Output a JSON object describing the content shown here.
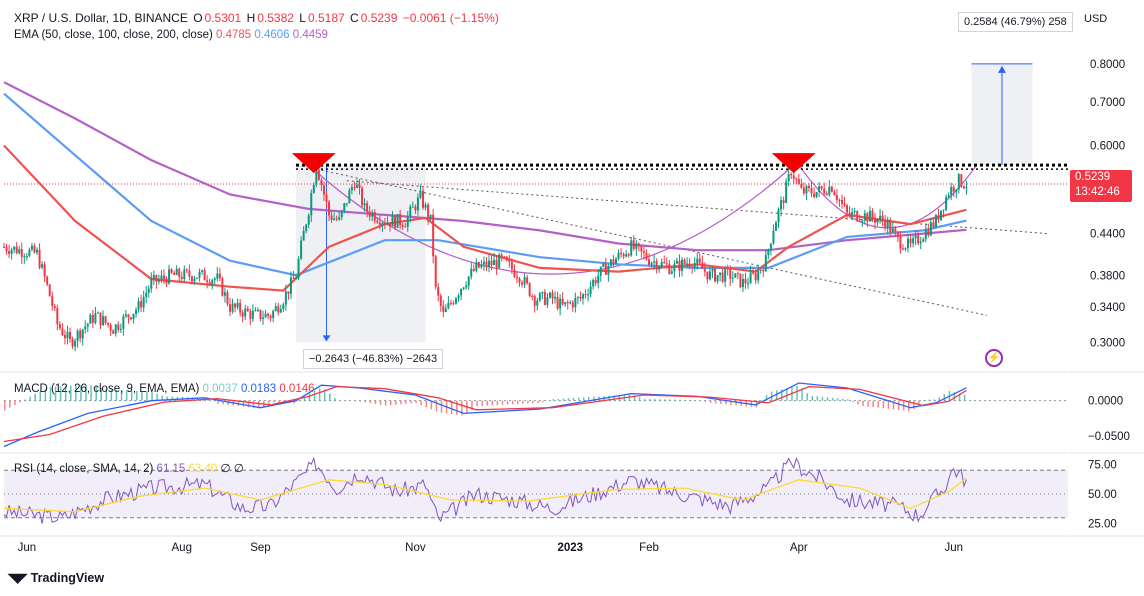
{
  "header": {
    "symbol": "XRP / U.S. Dollar, 1D, BINANCE",
    "o_label": "O",
    "o_value": "0.5301",
    "h_label": "H",
    "h_value": "0.5382",
    "l_label": "L",
    "l_value": "0.5187",
    "c_label": "C",
    "c_value": "0.5239",
    "change": "−0.0061 (−1.15%)"
  },
  "ema_legend": {
    "label": "EMA (50, close, 100, close, 200, close)",
    "ema50": "0.4785",
    "ema100": "0.4606",
    "ema200": "0.4459"
  },
  "macd_legend": {
    "label": "MACD (12, 26, close, 9, EMA, EMA)",
    "hist": "0.0037",
    "macd": "0.0183",
    "signal": "0.0146"
  },
  "rsi_legend": {
    "label": "RSI (14, close, SMA, 14, 2)",
    "rsi": "61.15",
    "sma": "63.40",
    "extra1": "∅",
    "extra2": "∅"
  },
  "price_tag": {
    "value": "0.5239",
    "countdown": "13:42:46"
  },
  "measure_up": "0.2584 (46.79%) 258",
  "measure_down": "−0.2643 (−46.83%) −2643",
  "currency": "USD",
  "brand": "TradingView",
  "colors": {
    "ema50": "#ef5350",
    "ema100": "#5b9cf6",
    "ema200": "#b460c8",
    "up": "#089981",
    "down": "#f23645",
    "macd": "#2962ff",
    "signal": "#f23645",
    "rsi": "#7e57c2",
    "rsi_sma": "#fdd835"
  },
  "chart_data": [
    {
      "type": "candlestick",
      "title": "XRP / U.S. Dollar, 1D, BINANCE",
      "ylabel": "USD",
      "y_ticks": [
        "0.8000",
        "0.7000",
        "0.6000",
        "0.4400",
        "0.3800",
        "0.3400",
        "0.3000"
      ],
      "y_scale": "log",
      "ylim": [
        0.28,
        0.87
      ],
      "x_ticks": [
        "Jun",
        "Aug",
        "Sep",
        "Nov",
        "2023",
        "Feb",
        "Apr",
        "Jun"
      ],
      "x_tick_dates": [
        "2022-06-01",
        "2022-08-01",
        "2022-09-01",
        "2022-11-01",
        "2023-01-01",
        "2023-02-01",
        "2023-04-01",
        "2023-06-01"
      ],
      "x_range": [
        "2022-05-23",
        "2023-07-16"
      ],
      "close_path": [
        [
          "2022-05-23",
          0.42
        ],
        [
          "2022-06-05",
          0.41
        ],
        [
          "2022-06-13",
          0.32
        ],
        [
          "2022-06-18",
          0.3
        ],
        [
          "2022-06-28",
          0.33
        ],
        [
          "2022-07-05",
          0.315
        ],
        [
          "2022-07-15",
          0.34
        ],
        [
          "2022-07-20",
          0.37
        ],
        [
          "2022-07-28",
          0.38
        ],
        [
          "2022-08-08",
          0.38
        ],
        [
          "2022-08-15",
          0.375
        ],
        [
          "2022-08-20",
          0.34
        ],
        [
          "2022-08-30",
          0.33
        ],
        [
          "2022-09-05",
          0.33
        ],
        [
          "2022-09-10",
          0.35
        ],
        [
          "2022-09-15",
          0.38
        ],
        [
          "2022-09-20",
          0.48
        ],
        [
          "2022-09-23",
          0.56
        ],
        [
          "2022-09-28",
          0.47
        ],
        [
          "2022-10-02",
          0.46
        ],
        [
          "2022-10-08",
          0.53
        ],
        [
          "2022-10-12",
          0.48
        ],
        [
          "2022-10-20",
          0.46
        ],
        [
          "2022-10-28",
          0.46
        ],
        [
          "2022-11-03",
          0.5
        ],
        [
          "2022-11-07",
          0.46
        ],
        [
          "2022-11-09",
          0.36
        ],
        [
          "2022-11-12",
          0.33
        ],
        [
          "2022-11-20",
          0.37
        ],
        [
          "2022-11-25",
          0.39
        ],
        [
          "2022-12-05",
          0.4
        ],
        [
          "2022-12-12",
          0.38
        ],
        [
          "2022-12-18",
          0.35
        ],
        [
          "2022-12-25",
          0.35
        ],
        [
          "2022-12-29",
          0.34
        ],
        [
          "2023-01-05",
          0.35
        ],
        [
          "2023-01-12",
          0.38
        ],
        [
          "2023-01-18",
          0.4
        ],
        [
          "2023-01-25",
          0.42
        ],
        [
          "2023-02-02",
          0.4
        ],
        [
          "2023-02-10",
          0.39
        ],
        [
          "2023-02-18",
          0.4
        ],
        [
          "2023-02-25",
          0.38
        ],
        [
          "2023-03-05",
          0.38
        ],
        [
          "2023-03-10",
          0.37
        ],
        [
          "2023-03-15",
          0.38
        ],
        [
          "2023-03-19",
          0.4
        ],
        [
          "2023-03-22",
          0.45
        ],
        [
          "2023-03-26",
          0.5
        ],
        [
          "2023-03-29",
          0.55
        ],
        [
          "2023-04-02",
          0.51
        ],
        [
          "2023-04-08",
          0.51
        ],
        [
          "2023-04-14",
          0.52
        ],
        [
          "2023-04-20",
          0.47
        ],
        [
          "2023-04-26",
          0.47
        ],
        [
          "2023-05-05",
          0.46
        ],
        [
          "2023-05-10",
          0.43
        ],
        [
          "2023-05-15",
          0.42
        ],
        [
          "2023-05-20",
          0.44
        ],
        [
          "2023-05-25",
          0.46
        ],
        [
          "2023-05-30",
          0.51
        ],
        [
          "2023-06-03",
          0.53
        ],
        [
          "2023-06-06",
          0.5239
        ]
      ],
      "ema50_path": [
        [
          "2022-05-23",
          0.6
        ],
        [
          "2022-06-20",
          0.46
        ],
        [
          "2022-07-20",
          0.375
        ],
        [
          "2022-08-20",
          0.365
        ],
        [
          "2022-09-10",
          0.36
        ],
        [
          "2022-09-28",
          0.42
        ],
        [
          "2022-10-20",
          0.455
        ],
        [
          "2022-11-05",
          0.465
        ],
        [
          "2022-11-20",
          0.42
        ],
        [
          "2022-12-20",
          0.39
        ],
        [
          "2023-01-20",
          0.385
        ],
        [
          "2023-02-20",
          0.395
        ],
        [
          "2023-03-15",
          0.385
        ],
        [
          "2023-03-28",
          0.42
        ],
        [
          "2023-04-20",
          0.47
        ],
        [
          "2023-05-15",
          0.455
        ],
        [
          "2023-06-06",
          0.4785
        ]
      ],
      "ema100_path": [
        [
          "2022-05-23",
          0.72
        ],
        [
          "2022-06-20",
          0.58
        ],
        [
          "2022-07-20",
          0.46
        ],
        [
          "2022-08-20",
          0.4
        ],
        [
          "2022-09-15",
          0.38
        ],
        [
          "2022-10-20",
          0.43
        ],
        [
          "2022-11-10",
          0.43
        ],
        [
          "2022-12-20",
          0.405
        ],
        [
          "2023-01-20",
          0.395
        ],
        [
          "2023-02-20",
          0.39
        ],
        [
          "2023-03-20",
          0.39
        ],
        [
          "2023-04-20",
          0.435
        ],
        [
          "2023-05-20",
          0.445
        ],
        [
          "2023-06-06",
          0.4606
        ]
      ],
      "ema200_path": [
        [
          "2022-05-23",
          0.75
        ],
        [
          "2022-06-20",
          0.66
        ],
        [
          "2022-07-20",
          0.57
        ],
        [
          "2022-08-20",
          0.505
        ],
        [
          "2022-09-20",
          0.48
        ],
        [
          "2022-10-20",
          0.47
        ],
        [
          "2022-11-20",
          0.46
        ],
        [
          "2022-12-20",
          0.445
        ],
        [
          "2023-01-20",
          0.425
        ],
        [
          "2023-02-20",
          0.415
        ],
        [
          "2023-03-20",
          0.415
        ],
        [
          "2023-04-20",
          0.43
        ],
        [
          "2023-05-20",
          0.44
        ],
        [
          "2023-06-06",
          0.4459
        ]
      ],
      "resistance": 0.56,
      "projection": [
        0.56,
        0.8
      ],
      "annotations": [
        "0.2584 (46.79%) 258",
        "−0.2643 (−46.83%) −2643"
      ],
      "last_price": 0.5239,
      "grid": false
    },
    {
      "type": "line",
      "title": "MACD (12, 26, close, 9, EMA, EMA)",
      "y_ticks": [
        "0.0000",
        "−0.0500"
      ],
      "ylim": [
        -0.07,
        0.035
      ],
      "macd_path": [
        [
          "2022-05-23",
          -0.065
        ],
        [
          "2022-06-05",
          -0.045
        ],
        [
          "2022-06-25",
          -0.018
        ],
        [
          "2022-07-20",
          0.0
        ],
        [
          "2022-08-10",
          0.004
        ],
        [
          "2022-09-01",
          -0.01
        ],
        [
          "2022-09-15",
          0.0
        ],
        [
          "2022-09-25",
          0.022
        ],
        [
          "2022-10-10",
          0.018
        ],
        [
          "2022-11-01",
          0.008
        ],
        [
          "2022-11-20",
          -0.018
        ],
        [
          "2022-12-20",
          -0.012
        ],
        [
          "2023-01-25",
          0.01
        ],
        [
          "2023-02-20",
          0.006
        ],
        [
          "2023-03-15",
          -0.006
        ],
        [
          "2023-04-01",
          0.025
        ],
        [
          "2023-04-20",
          0.018
        ],
        [
          "2023-05-15",
          -0.01
        ],
        [
          "2023-05-25",
          -0.003
        ],
        [
          "2023-06-06",
          0.0183
        ]
      ],
      "signal_path": [
        [
          "2022-05-23",
          -0.058
        ],
        [
          "2022-06-10",
          -0.048
        ],
        [
          "2022-07-01",
          -0.022
        ],
        [
          "2022-07-25",
          -0.002
        ],
        [
          "2022-08-15",
          0.003
        ],
        [
          "2022-09-05",
          -0.006
        ],
        [
          "2022-09-20",
          0.006
        ],
        [
          "2022-10-01",
          0.02
        ],
        [
          "2022-10-20",
          0.017
        ],
        [
          "2022-11-10",
          0.004
        ],
        [
          "2022-11-25",
          -0.013
        ],
        [
          "2022-12-25",
          -0.01
        ],
        [
          "2023-01-30",
          0.008
        ],
        [
          "2023-02-25",
          0.005
        ],
        [
          "2023-03-20",
          -0.003
        ],
        [
          "2023-04-05",
          0.02
        ],
        [
          "2023-04-25",
          0.016
        ],
        [
          "2023-05-20",
          -0.007
        ],
        [
          "2023-05-30",
          -0.001
        ],
        [
          "2023-06-06",
          0.0146
        ]
      ]
    },
    {
      "type": "line",
      "title": "RSI (14, close, SMA, 14, 2)",
      "y_ticks": [
        "75.00",
        "50.00",
        "25.00"
      ],
      "ylim": [
        18,
        82
      ],
      "bands": [
        30,
        50,
        70
      ],
      "rsi_path": [
        [
          "2022-05-23",
          35
        ],
        [
          "2022-06-15",
          30
        ],
        [
          "2022-07-01",
          45
        ],
        [
          "2022-07-20",
          55
        ],
        [
          "2022-08-10",
          58
        ],
        [
          "2022-08-25",
          38
        ],
        [
          "2022-09-05",
          40
        ],
        [
          "2022-09-23",
          76
        ],
        [
          "2022-10-01",
          55
        ],
        [
          "2022-10-10",
          68
        ],
        [
          "2022-10-25",
          52
        ],
        [
          "2022-11-05",
          58
        ],
        [
          "2022-11-10",
          28
        ],
        [
          "2022-11-25",
          50
        ],
        [
          "2022-12-10",
          45
        ],
        [
          "2022-12-25",
          38
        ],
        [
          "2023-01-10",
          50
        ],
        [
          "2023-01-25",
          62
        ],
        [
          "2023-02-10",
          52
        ],
        [
          "2023-03-05",
          40
        ],
        [
          "2023-03-20",
          55
        ],
        [
          "2023-03-29",
          77
        ],
        [
          "2023-04-10",
          62
        ],
        [
          "2023-04-20",
          45
        ],
        [
          "2023-05-10",
          40
        ],
        [
          "2023-05-18",
          32
        ],
        [
          "2023-05-28",
          55
        ],
        [
          "2023-06-01",
          72
        ],
        [
          "2023-06-06",
          61.15
        ]
      ],
      "sma_path": [
        [
          "2022-05-23",
          38
        ],
        [
          "2022-06-20",
          35
        ],
        [
          "2022-07-15",
          48
        ],
        [
          "2022-08-10",
          55
        ],
        [
          "2022-09-01",
          45
        ],
        [
          "2022-09-28",
          62
        ],
        [
          "2022-10-20",
          58
        ],
        [
          "2022-11-15",
          45
        ],
        [
          "2022-12-15",
          44
        ],
        [
          "2023-01-20",
          54
        ],
        [
          "2023-02-15",
          55
        ],
        [
          "2023-03-10",
          45
        ],
        [
          "2023-04-01",
          62
        ],
        [
          "2023-04-25",
          55
        ],
        [
          "2023-05-15",
          38
        ],
        [
          "2023-05-30",
          52
        ],
        [
          "2023-06-06",
          63.4
        ]
      ]
    }
  ]
}
